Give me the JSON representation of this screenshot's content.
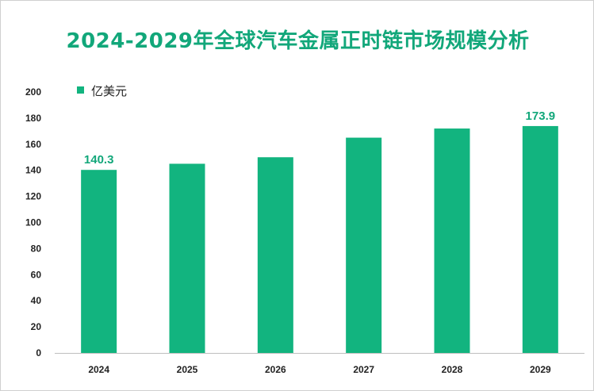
{
  "chart_data": {
    "type": "bar",
    "title": "2024-2029年全球汽车金属正时链市场规模分析",
    "legend": "亿美元",
    "categories": [
      "2024",
      "2025",
      "2026",
      "2027",
      "2028",
      "2029"
    ],
    "values": [
      140.3,
      145,
      150,
      165,
      172,
      173.9
    ],
    "data_labels": [
      "140.3",
      "",
      "",
      "",
      "",
      "173.9"
    ],
    "ylim": [
      0,
      200
    ],
    "yticks": [
      0,
      20,
      40,
      60,
      80,
      100,
      120,
      140,
      160,
      180,
      200
    ],
    "xlabel": "",
    "ylabel": "",
    "grid": false,
    "color": "#12b47f"
  }
}
